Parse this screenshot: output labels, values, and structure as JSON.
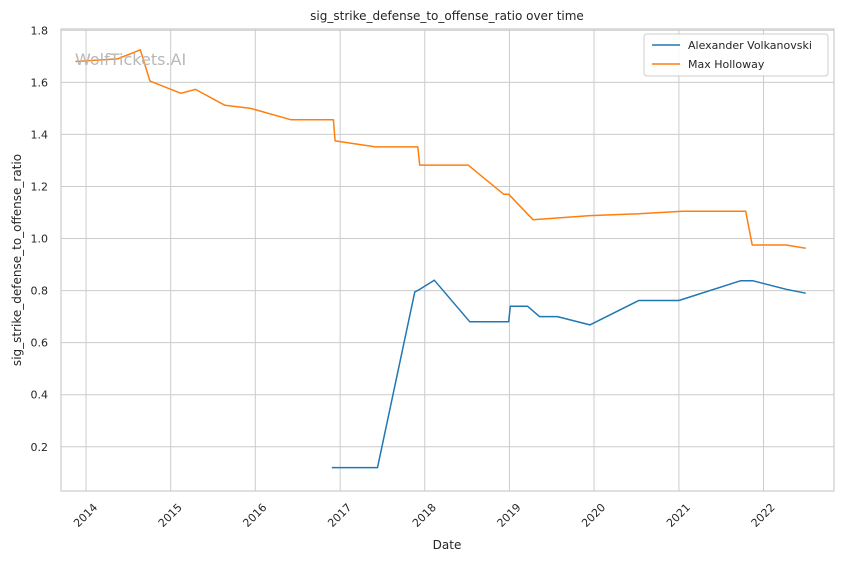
{
  "chart_data": {
    "type": "line",
    "title": "sig_strike_defense_to_offense_ratio over time",
    "xlabel": "Date",
    "ylabel": "sig_strike_defense_to_offense_ratio",
    "watermark": "WolfTickets.AI",
    "x_ticks": [
      "2014",
      "2015",
      "2016",
      "2017",
      "2018",
      "2019",
      "2020",
      "2021",
      "2022"
    ],
    "y_ticks": [
      "0.2",
      "0.4",
      "0.6",
      "0.8",
      "1.0",
      "1.2",
      "1.4",
      "1.6",
      "1.8"
    ],
    "xlim": [
      "2013-09-15",
      "2022-11-01"
    ],
    "ylim": [
      0.03,
      1.805
    ],
    "grid": true,
    "legend_position": "top-right",
    "series": [
      {
        "name": "Alexander Volkanovski",
        "color": "#1f77b4",
        "points": [
          [
            "2016-11-26",
            0.12
          ],
          [
            "2017-06-11",
            0.12
          ],
          [
            "2017-11-19",
            0.795
          ],
          [
            "2017-12-01",
            0.8
          ],
          [
            "2018-02-11",
            0.84
          ],
          [
            "2018-07-14",
            0.68
          ],
          [
            "2018-12-29",
            0.68
          ],
          [
            "2019-01-05",
            0.74
          ],
          [
            "2019-03-20",
            0.74
          ],
          [
            "2019-05-11",
            0.7
          ],
          [
            "2019-07-27",
            0.7
          ],
          [
            "2019-12-14",
            0.668
          ],
          [
            "2020-07-12",
            0.762
          ],
          [
            "2021-01-01",
            0.762
          ],
          [
            "2021-09-25",
            0.838
          ],
          [
            "2021-11-15",
            0.838
          ],
          [
            "2022-04-09",
            0.805
          ],
          [
            "2022-07-02",
            0.79
          ]
        ]
      },
      {
        "name": "Max Holloway",
        "color": "#ff7f0e",
        "points": [
          [
            "2013-11-16",
            1.68
          ],
          [
            "2014-05-17",
            1.69
          ],
          [
            "2014-08-23",
            1.725
          ],
          [
            "2014-10-04",
            1.605
          ],
          [
            "2015-02-14",
            1.558
          ],
          [
            "2015-04-18",
            1.573
          ],
          [
            "2015-08-23",
            1.512
          ],
          [
            "2015-12-12",
            1.5
          ],
          [
            "2016-06-04",
            1.456
          ],
          [
            "2016-12-03",
            1.456
          ],
          [
            "2016-12-10",
            1.375
          ],
          [
            "2017-06-03",
            1.352
          ],
          [
            "2017-12-02",
            1.352
          ],
          [
            "2017-12-10",
            1.282
          ],
          [
            "2018-07-07",
            1.282
          ],
          [
            "2018-12-08",
            1.17
          ],
          [
            "2018-12-29",
            1.17
          ],
          [
            "2019-04-13",
            1.072
          ],
          [
            "2019-12-14",
            1.088
          ],
          [
            "2020-07-12",
            1.095
          ],
          [
            "2021-01-16",
            1.105
          ],
          [
            "2021-10-16",
            1.105
          ],
          [
            "2021-11-13",
            0.975
          ],
          [
            "2022-04-09",
            0.975
          ],
          [
            "2022-07-02",
            0.963
          ]
        ]
      }
    ]
  }
}
